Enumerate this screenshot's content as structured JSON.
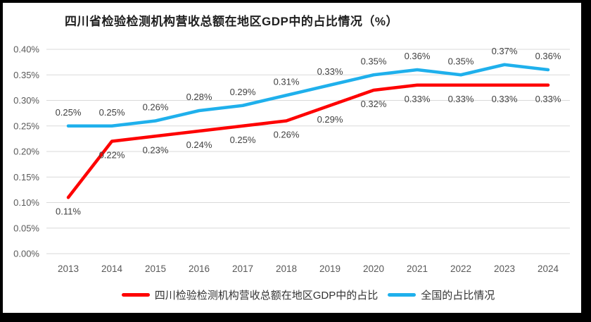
{
  "frame": {
    "border_color": "#000000",
    "canvas_background": "#ffffff"
  },
  "chart_data": {
    "type": "line",
    "title": "四川省检验检测机构营收总额在地区GDP中的占比情况（%）",
    "categories": [
      "2013",
      "2014",
      "2015",
      "2016",
      "2017",
      "2018",
      "2019",
      "2020",
      "2021",
      "2022",
      "2023",
      "2024"
    ],
    "series": [
      {
        "name": "四川检验检测机构营收总额在地区GDP中的占比",
        "color": "#FE0000",
        "values": [
          0.11,
          0.22,
          0.23,
          0.24,
          0.25,
          0.26,
          0.29,
          0.32,
          0.33,
          0.33,
          0.33,
          0.33
        ],
        "labels": [
          "0.11%",
          "0.22%",
          "0.23%",
          "0.24%",
          "0.25%",
          "0.26%",
          "0.29%",
          "0.32%",
          "0.33%",
          "0.33%",
          "0.33%",
          "0.33%"
        ],
        "label_position": "below"
      },
      {
        "name": "全国的占比情况",
        "color": "#1FB0EC",
        "values": [
          0.25,
          0.25,
          0.26,
          0.28,
          0.29,
          0.31,
          0.33,
          0.35,
          0.36,
          0.35,
          0.37,
          0.36
        ],
        "labels": [
          "0.25%",
          "0.25%",
          "0.26%",
          "0.28%",
          "0.29%",
          "0.31%",
          "0.33%",
          "0.35%",
          "0.36%",
          "0.35%",
          "0.37%",
          "0.36%"
        ],
        "label_position": "above"
      }
    ],
    "y_axis": {
      "min": 0,
      "max": 0.4,
      "step": 0.05,
      "ticks": [
        "0.00%",
        "0.05%",
        "0.10%",
        "0.15%",
        "0.20%",
        "0.25%",
        "0.30%",
        "0.35%",
        "0.40%"
      ]
    },
    "grid": true,
    "legend_position": "bottom",
    "colors": {
      "gridline": "#D9D9D9",
      "tick_text": "#595959",
      "data_label_text": "#404040",
      "title_text": "#1f1f1f"
    }
  }
}
